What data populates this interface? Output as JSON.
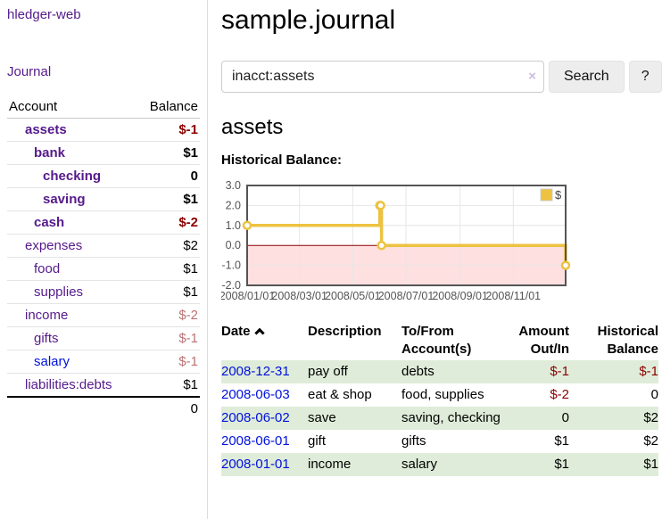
{
  "app": {
    "brand": "hledger-web",
    "nav_journal": "Journal"
  },
  "sidebar": {
    "header": {
      "account": "Account",
      "balance": "Balance"
    },
    "accounts": [
      {
        "name": "assets",
        "balance": "$-1",
        "level": 1,
        "bold": true,
        "tone": "neg-strong",
        "link": "purple"
      },
      {
        "name": "bank",
        "balance": "$1",
        "level": 2,
        "bold": true,
        "tone": "normal",
        "link": "purple"
      },
      {
        "name": "checking",
        "balance": "0",
        "level": 3,
        "bold": true,
        "tone": "normal",
        "link": "purple"
      },
      {
        "name": "saving",
        "balance": "$1",
        "level": 3,
        "bold": true,
        "tone": "normal",
        "link": "purple"
      },
      {
        "name": "cash",
        "balance": "$-2",
        "level": 2,
        "bold": true,
        "tone": "neg-strong",
        "link": "purple"
      },
      {
        "name": "expenses",
        "balance": "$2",
        "level": 1,
        "bold": false,
        "tone": "normal",
        "link": "purple"
      },
      {
        "name": "food",
        "balance": "$1",
        "level": 2,
        "bold": false,
        "tone": "normal",
        "link": "purple"
      },
      {
        "name": "supplies",
        "balance": "$1",
        "level": 2,
        "bold": false,
        "tone": "normal",
        "link": "purple"
      },
      {
        "name": "income",
        "balance": "$-2",
        "level": 1,
        "bold": false,
        "tone": "neg-soft",
        "link": "purple"
      },
      {
        "name": "gifts",
        "balance": "$-1",
        "level": 2,
        "bold": false,
        "tone": "neg-soft",
        "link": "purple"
      },
      {
        "name": "salary",
        "balance": "$-1",
        "level": 2,
        "bold": false,
        "tone": "neg-soft",
        "link": "blue"
      },
      {
        "name": "liabilities:debts",
        "balance": "$1",
        "level": 1,
        "bold": false,
        "tone": "normal",
        "link": "purple"
      }
    ],
    "total": "0"
  },
  "main": {
    "title": "sample.journal",
    "search": {
      "value": "inacct:assets",
      "clear": "×",
      "search_button": "Search",
      "help_button": "?"
    },
    "account_heading": "assets",
    "section_label": "Historical Balance:"
  },
  "chart_data": {
    "type": "line",
    "title": "Historical Balance:",
    "style": "step-after",
    "series": [
      {
        "name": "$",
        "color": "#edc240",
        "points": [
          [
            "2008-01-01",
            1
          ],
          [
            "2008-06-01",
            2
          ],
          [
            "2008-06-02",
            2
          ],
          [
            "2008-06-03",
            0
          ],
          [
            "2008-12-31",
            -1
          ]
        ]
      }
    ],
    "xlim": [
      "2008-01-01",
      "2008-12-31"
    ],
    "ylim": [
      -2,
      3
    ],
    "x_ticks": [
      "2008-01-01",
      "2008-03-01",
      "2008-05-01",
      "2008-07-01",
      "2008-09-01",
      "2008-11-01"
    ],
    "x_tick_labels": [
      "2008/01/01",
      "2008/03/01",
      "2008/05/01",
      "2008/07/01",
      "2008/09/01",
      "2008/11/01"
    ],
    "y_ticks": [
      3,
      2,
      1,
      0,
      -1,
      -2
    ],
    "y_tick_labels": [
      "3.0",
      "2.0",
      "1.0",
      "0.0",
      "-1.0",
      "-2.0"
    ],
    "grid": true,
    "legend": {
      "label": "$",
      "position": "top-right"
    },
    "negative_region_fill": "rgba(255,0,0,0.12)",
    "zero_line_color": "#8b0000",
    "border_color": "#545454",
    "tick_label_color": "#545454"
  },
  "register": {
    "headers": {
      "date": "Date",
      "description": "Description",
      "accounts": "To/From Account(s)",
      "amount": "Amount Out/In",
      "balance": "Historical Balance"
    },
    "rows": [
      {
        "date": "2008-12-31",
        "description": "pay off",
        "accounts": "debts",
        "amount": "$-1",
        "balance": "$-1"
      },
      {
        "date": "2008-06-03",
        "description": "eat & shop",
        "accounts": "food, supplies",
        "amount": "$-2",
        "balance": "0"
      },
      {
        "date": "2008-06-02",
        "description": "save",
        "accounts": "saving, checking",
        "amount": "0",
        "balance": "$2"
      },
      {
        "date": "2008-06-01",
        "description": "gift",
        "accounts": "gifts",
        "amount": "$1",
        "balance": "$2"
      },
      {
        "date": "2008-01-01",
        "description": "income",
        "accounts": "salary",
        "amount": "$1",
        "balance": "$1"
      }
    ]
  },
  "colors": {
    "link_purple": "#551a8b",
    "link_blue": "#0011dd",
    "negative_strong": "#8b0000",
    "negative_soft": "#bb7474",
    "row_green": "#dfecd9",
    "chart_line": "#edc240"
  }
}
